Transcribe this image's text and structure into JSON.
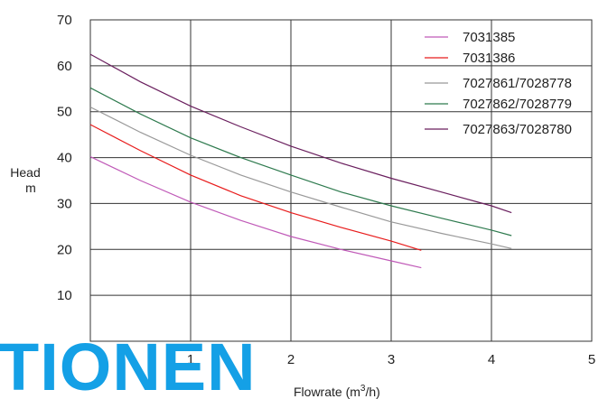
{
  "chart_data": {
    "type": "line",
    "xlabel": "Flowrate (m",
    "xlabel_sup": "3",
    "xlabel_end": "/h)",
    "ylabel": "Head",
    "ylabel_unit": "m",
    "xlim": [
      0,
      5
    ],
    "ylim": [
      0,
      70
    ],
    "x_ticks": [
      "1",
      "2",
      "3",
      "4",
      "5"
    ],
    "y_ticks": [
      "10",
      "20",
      "30",
      "40",
      "50",
      "60",
      "70"
    ],
    "grid": true,
    "legend": "top-right",
    "series": [
      {
        "name": "7031385",
        "color": "#c05ab8",
        "x": [
          0,
          0.5,
          1.0,
          1.5,
          2.0,
          2.5,
          3.0,
          3.3
        ],
        "y": [
          40.2,
          35.0,
          30.3,
          26.3,
          22.8,
          20.0,
          17.5,
          16.0
        ]
      },
      {
        "name": "7031386",
        "color": "#e81c1c",
        "x": [
          0,
          0.5,
          1.0,
          1.5,
          2.0,
          2.5,
          3.0,
          3.3
        ],
        "y": [
          47.2,
          41.5,
          36.2,
          31.7,
          28.0,
          24.8,
          21.8,
          19.8
        ]
      },
      {
        "name": "7027861/7028778",
        "color": "#999999",
        "x": [
          0,
          0.5,
          1.0,
          1.5,
          2.0,
          2.5,
          3.0,
          3.5,
          4.0,
          4.2
        ],
        "y": [
          51.0,
          45.5,
          40.5,
          36.2,
          32.5,
          29.2,
          26.0,
          23.5,
          21.2,
          20.2
        ]
      },
      {
        "name": "7027862/7028779",
        "color": "#2e7a4e",
        "x": [
          0,
          0.5,
          1.0,
          1.5,
          2.0,
          2.5,
          3.0,
          3.5,
          4.0,
          4.2
        ],
        "y": [
          55.2,
          49.5,
          44.3,
          40.0,
          36.2,
          32.5,
          29.5,
          26.8,
          24.2,
          23.0
        ]
      },
      {
        "name": "7027863/7028780",
        "color": "#6a1f5e",
        "x": [
          0,
          0.5,
          1.0,
          1.5,
          2.0,
          2.5,
          3.0,
          3.5,
          4.0,
          4.2
        ],
        "y": [
          62.5,
          56.5,
          51.2,
          46.7,
          42.5,
          38.8,
          35.5,
          32.5,
          29.5,
          28.0
        ]
      }
    ]
  },
  "watermark": {
    "text": "TIONEN",
    "color": "#14a0e6"
  }
}
